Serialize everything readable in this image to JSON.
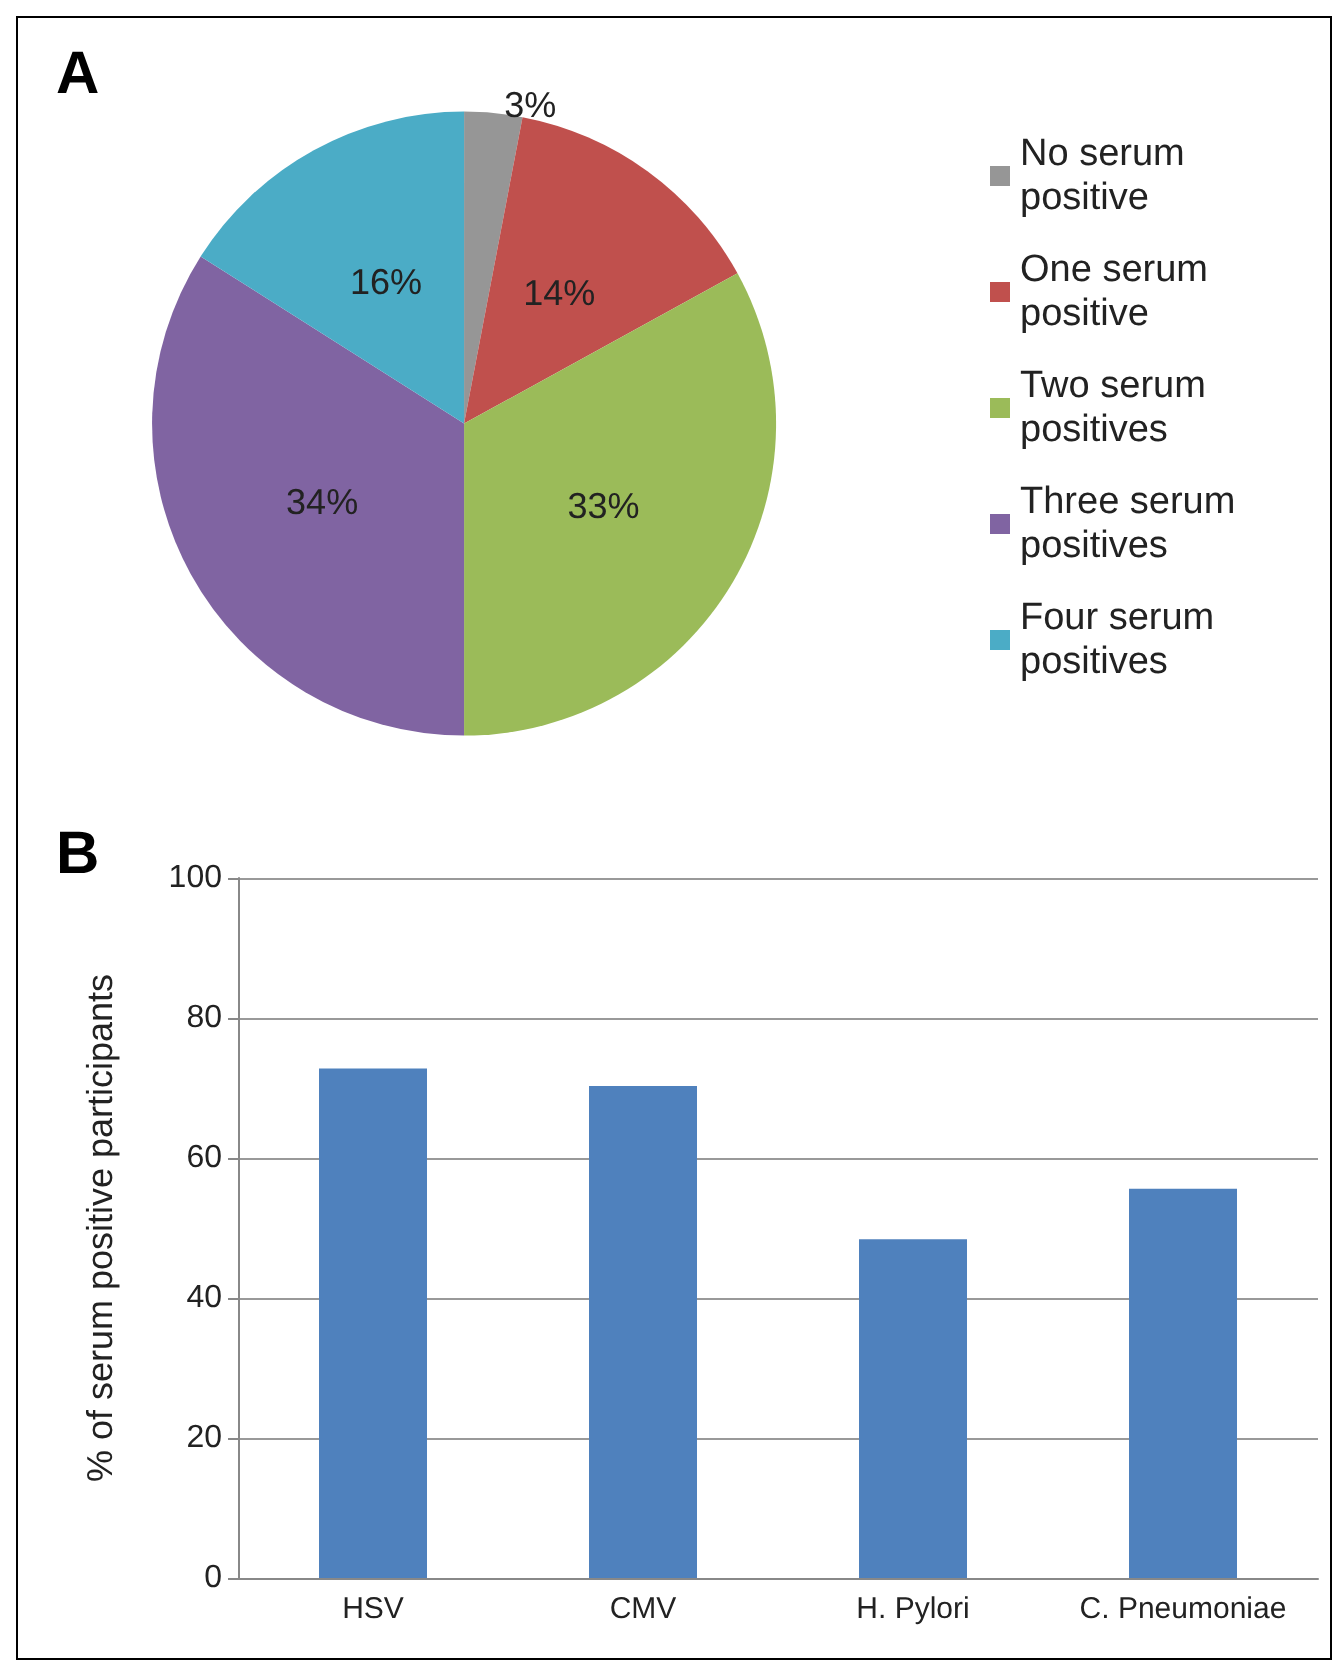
{
  "chart_data": [
    {
      "type": "pie",
      "title": "A",
      "categories": [
        "No serum positive",
        "One serum positive",
        "Two serum positives",
        "Three serum positives",
        "Four serum positives"
      ],
      "values": [
        3,
        14,
        33,
        34,
        16
      ],
      "colors": [
        "#969696",
        "#c0504d",
        "#9bbb59",
        "#8064a2",
        "#4bacc6"
      ],
      "value_labels": [
        "3%",
        "14%",
        "33%",
        "34%",
        "16%"
      ],
      "legend": "right"
    },
    {
      "type": "bar",
      "title": "B",
      "ylabel": "% of serum positive participants",
      "categories": [
        "HSV",
        "CMV",
        "H. Pylori",
        "C. Pneumoniae"
      ],
      "values": [
        72.8,
        70.3,
        48.4,
        55.6
      ],
      "color": "#4f81bd",
      "ylim": [
        0,
        100
      ],
      "yticks": [
        0,
        20,
        40,
        60,
        80,
        100
      ],
      "grid": "y"
    }
  ]
}
